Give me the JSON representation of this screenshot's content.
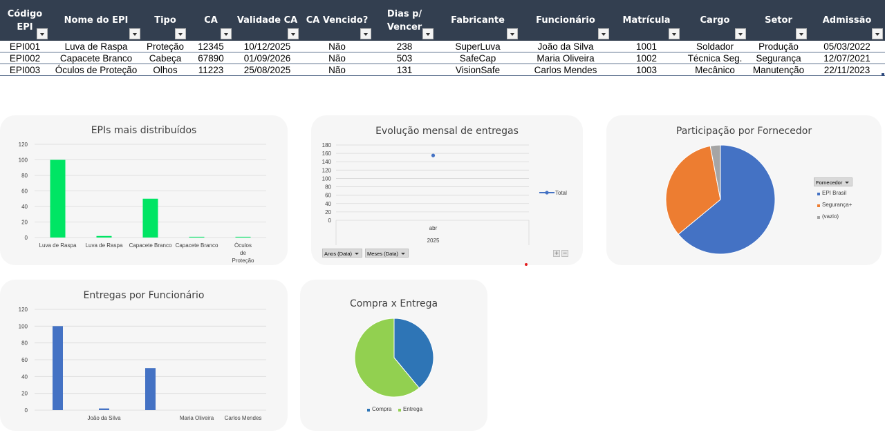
{
  "table": {
    "columns": [
      {
        "label": "Código\nEPI"
      },
      {
        "label": "Nome do EPI"
      },
      {
        "label": "Tipo"
      },
      {
        "label": "CA"
      },
      {
        "label": "Validade CA"
      },
      {
        "label": "CA Vencido?"
      },
      {
        "label": "Dias p/\nVencer"
      },
      {
        "label": "Fabricante"
      },
      {
        "label": "Funcionário"
      },
      {
        "label": "Matrícula"
      },
      {
        "label": "Cargo"
      },
      {
        "label": "Setor"
      },
      {
        "label": "Admissão"
      }
    ],
    "rows": [
      [
        "EPI001",
        "Luva de Raspa",
        "Proteção",
        "12345",
        "10/12/2025",
        "Não",
        "238",
        "SuperLuva",
        "João da Silva",
        "1001",
        "Soldador",
        "Produção",
        "05/03/2022"
      ],
      [
        "EPI002",
        "Capacete Branco",
        "Cabeça",
        "67890",
        "01/09/2026",
        "Não",
        "503",
        "SafeCap",
        "Maria Oliveira",
        "1002",
        "Técnica Seg.",
        "Segurança",
        "12/07/2021"
      ],
      [
        "EPI003",
        "Óculos de Proteção",
        "Olhos",
        "11223",
        "25/08/2025",
        "Não",
        "131",
        "VisionSafe",
        "Carlos Mendes",
        "1003",
        "Mecânico",
        "Manutenção",
        "22/11/2023"
      ]
    ]
  },
  "charts": {
    "epis_distribuidos": {
      "title": "EPIs mais distribuídos",
      "color": "#00e564"
    },
    "evolucao_mensal": {
      "title": "Evolução mensal de entregas",
      "legend": "Total",
      "color": "#4472c4",
      "x_month": "abr",
      "x_year": "2025",
      "field_buttons": [
        "Anos (Data)",
        "Meses (Data)"
      ],
      "plus": "+",
      "minus": "−"
    },
    "participacao_fornecedor": {
      "title": "Participação por Fornecedor",
      "filter_label": "Fornecedor"
    },
    "entregas_funcionario": {
      "title": "Entregas por Funcionário",
      "color": "#4472c4"
    },
    "compra_entrega": {
      "title": "Compra x Entrega"
    }
  },
  "chart_data": [
    {
      "type": "bar",
      "title": "EPIs mais distribuídos",
      "categories": [
        "Luva de Raspa",
        "Luva de Raspa",
        "Capacete Branco",
        "Capacete Branco",
        "Óculos de Proteção"
      ],
      "values": [
        100,
        2,
        50,
        1,
        1
      ],
      "ylim": [
        0,
        120
      ],
      "yticks": [
        0,
        20,
        40,
        60,
        80,
        100,
        120
      ],
      "grid": true
    },
    {
      "type": "line",
      "title": "Evolução mensal de entregas",
      "categories": [
        "abr"
      ],
      "series": [
        {
          "name": "Total",
          "values": [
            155
          ]
        }
      ],
      "ylim": [
        0,
        180
      ],
      "yticks": [
        0,
        20,
        40,
        60,
        80,
        100,
        120,
        140,
        160,
        180
      ],
      "legend": "right",
      "grid": true
    },
    {
      "type": "pie",
      "title": "Participação por Fornecedor",
      "categories": [
        "EPI Brasil",
        "Segurança+",
        "(vazio)"
      ],
      "values": [
        64,
        33,
        3
      ],
      "colors": [
        "#4472c4",
        "#ed7d31",
        "#a5a5a5"
      ],
      "legend": "right"
    },
    {
      "type": "bar",
      "title": "Entregas por Funcionário",
      "categories": [
        "",
        "João da Silva",
        "",
        "Maria Oliveira",
        "Carlos Mendes"
      ],
      "values": [
        100,
        2,
        50,
        0,
        0
      ],
      "ylim": [
        0,
        120
      ],
      "yticks": [
        0,
        20,
        40,
        60,
        80,
        100,
        120
      ],
      "grid": true
    },
    {
      "type": "pie",
      "title": "Compra x Entrega",
      "categories": [
        "Compra",
        "Entrega"
      ],
      "values": [
        39,
        61
      ],
      "colors": [
        "#2e75b6",
        "#92d050"
      ],
      "legend": "bottom"
    }
  ]
}
